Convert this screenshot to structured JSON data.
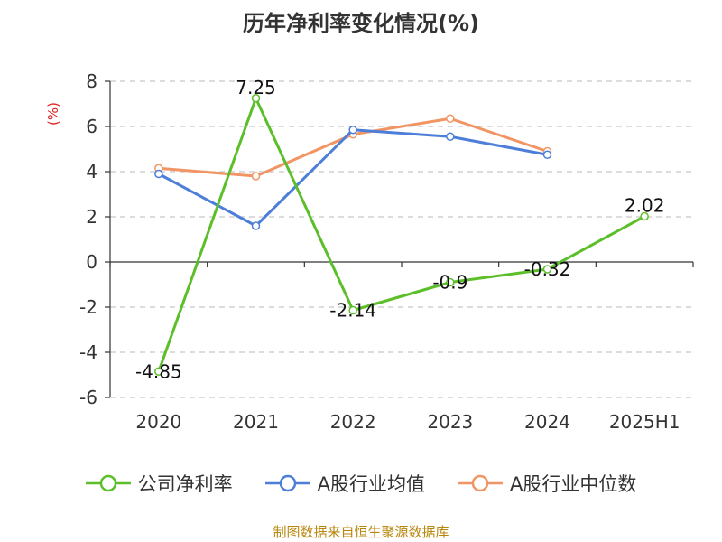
{
  "chart_data": {
    "type": "line",
    "title": "历年净利率变化情况(%)",
    "ylabel": "(%)",
    "xlabel": "",
    "categories": [
      "2020",
      "2021",
      "2022",
      "2023",
      "2024",
      "2025H1"
    ],
    "ylim": [
      -6,
      8
    ],
    "yticks": [
      -6,
      -4,
      -2,
      0,
      2,
      4,
      6,
      8
    ],
    "grid": true,
    "legend_position": "bottom",
    "series": [
      {
        "name": "公司净利率",
        "color": "#5cbf2a",
        "values": [
          -4.85,
          7.25,
          -2.14,
          -0.9,
          -0.32,
          2.02
        ],
        "labels": [
          "-4.85",
          "7.25",
          "-2.14",
          "-0.9",
          "-0.32",
          "2.02"
        ]
      },
      {
        "name": "A股行业均值",
        "color": "#4e7fd8",
        "values": [
          3.9,
          1.6,
          5.85,
          5.55,
          4.75,
          null
        ]
      },
      {
        "name": "A股行业中位数",
        "color": "#f29564",
        "values": [
          4.15,
          3.8,
          5.65,
          6.35,
          4.9,
          null
        ]
      }
    ]
  },
  "source": "制图数据来自恒生聚源数据库"
}
